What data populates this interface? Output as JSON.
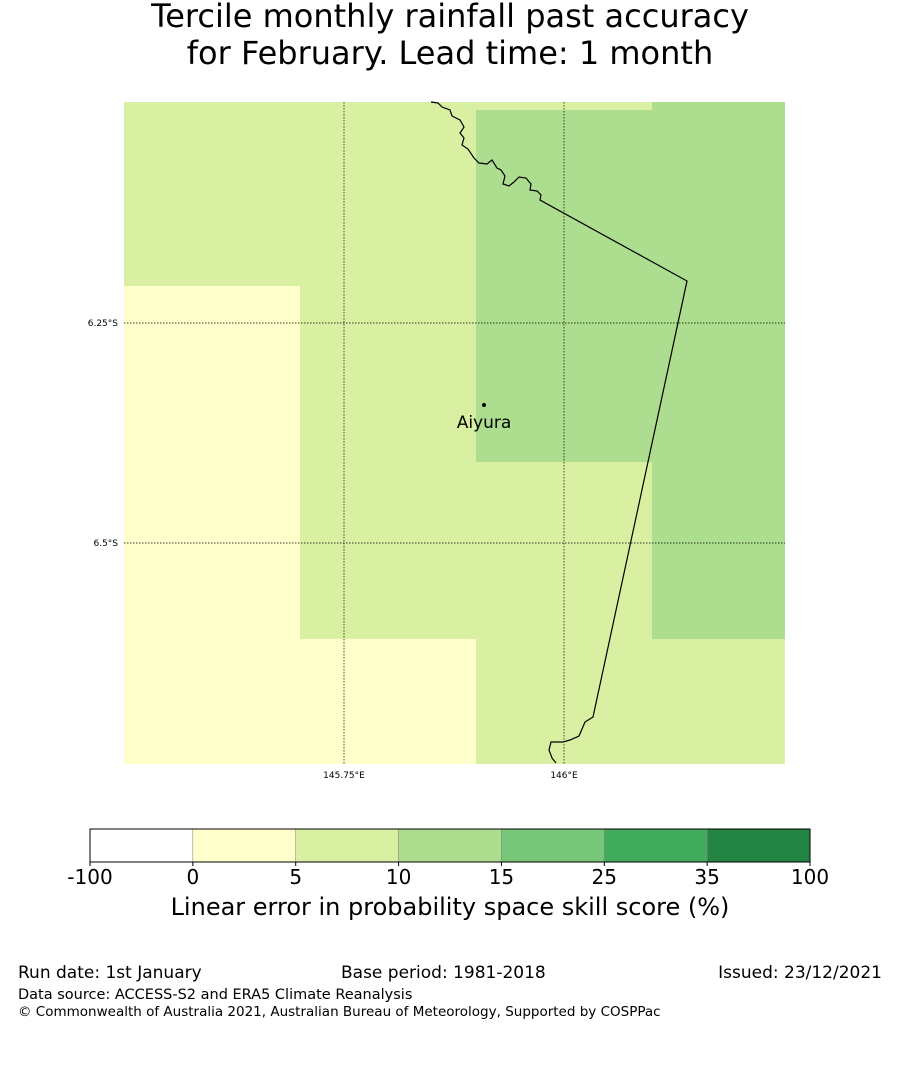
{
  "title": {
    "line1": "Tercile monthly rainfall past accuracy",
    "line2": "for February. Lead time: 1 month"
  },
  "map": {
    "place_label": "Aiyura",
    "lat_labels": [
      "6.25°S",
      "6.5°S"
    ],
    "lon_labels": [
      "145.75°E",
      "146°E"
    ],
    "grid_cells": [
      {
        "level": 2,
        "region": "north-west"
      },
      {
        "level": 1,
        "region": "west"
      },
      {
        "level": 2,
        "region": "central"
      },
      {
        "level": 3,
        "region": "north-east"
      },
      {
        "level": 3,
        "region": "east"
      },
      {
        "level": 1,
        "region": "south-west"
      },
      {
        "level": 2,
        "region": "south"
      }
    ]
  },
  "colorbar": {
    "ticks": [
      "-100",
      "0",
      "5",
      "10",
      "15",
      "25",
      "35",
      "100"
    ],
    "colors": [
      "#ffffff",
      "#ffffcc",
      "#d9f0a3",
      "#addd8e",
      "#78c679",
      "#41ab5d",
      "#238443"
    ],
    "label": "Linear error in probability space skill score (%)"
  },
  "footer": {
    "run_date": "Run date: 1st January",
    "base_period": "Base period: 1981-2018",
    "issued": "Issued: 23/12/2021",
    "data_source": "Data source: ACCESS-S2 and ERA5 Climate Reanalysis",
    "copyright": "© Commonwealth of Australia 2021, Australian Bureau of Meteorology, Supported by COSPPac"
  }
}
